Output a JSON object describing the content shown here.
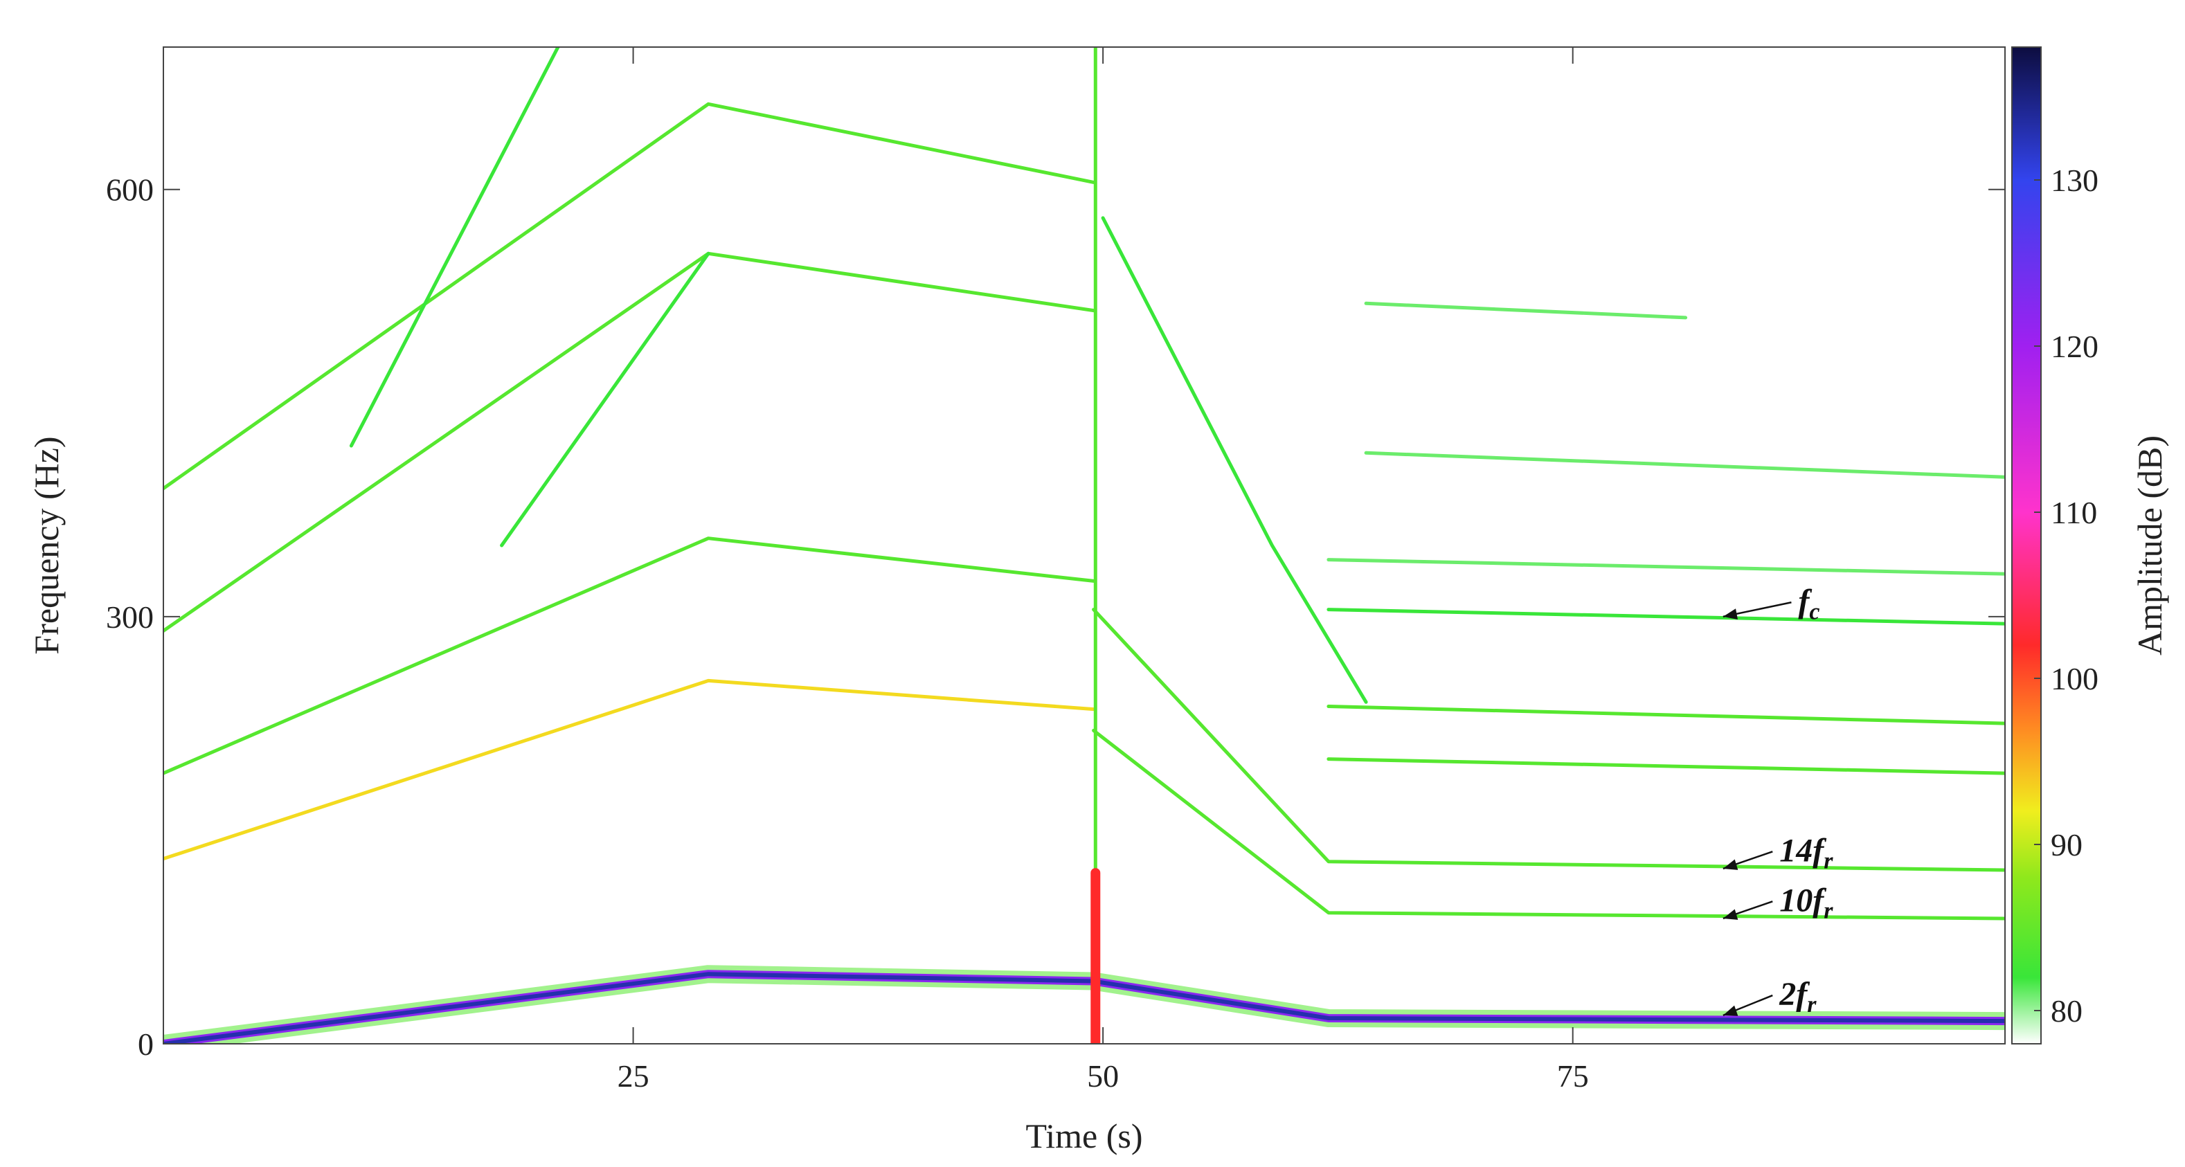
{
  "chart_data": {
    "type": "heatmap",
    "subtype": "spectrogram",
    "xlabel": "Time (s)",
    "ylabel": "Frequency (Hz)",
    "colorbar_label": "Amplitude (dB)",
    "xlim": [
      0,
      98
    ],
    "ylim": [
      0,
      700
    ],
    "xticks": [
      25,
      50,
      75
    ],
    "yticks": [
      0,
      300,
      600
    ],
    "colorbar_range": [
      78,
      138
    ],
    "colorbar_ticks": [
      80,
      90,
      100,
      110,
      120,
      130
    ],
    "colormap": [
      {
        "value": 78,
        "color": "#ffffff"
      },
      {
        "value": 82,
        "color": "#39e639"
      },
      {
        "value": 88,
        "color": "#8fe81c"
      },
      {
        "value": 92,
        "color": "#f0ee1e"
      },
      {
        "value": 97,
        "color": "#ff8a22"
      },
      {
        "value": 102,
        "color": "#ff2a2a"
      },
      {
        "value": 110,
        "color": "#ff33cc"
      },
      {
        "value": 120,
        "color": "#a020f0"
      },
      {
        "value": 130,
        "color": "#3344ee"
      },
      {
        "value": 138,
        "color": "#0d0d40"
      }
    ],
    "grid": false,
    "tracks": [
      {
        "id": "t1",
        "points": [
          [
            0,
            0
          ],
          [
            29,
            49
          ],
          [
            49.5,
            44
          ],
          [
            62,
            18
          ],
          [
            98,
            16
          ]
        ],
        "amplitude": 133
      },
      {
        "id": "t2",
        "points": [
          [
            0,
            130
          ],
          [
            29,
            255
          ],
          [
            49.5,
            235
          ]
        ],
        "amplitude": 93
      },
      {
        "id": "t3",
        "points": [
          [
            0,
            190
          ],
          [
            29,
            355
          ],
          [
            49.5,
            325
          ]
        ],
        "amplitude": 84
      },
      {
        "id": "t4",
        "points": [
          [
            0,
            290
          ],
          [
            29,
            555
          ],
          [
            49.5,
            515
          ]
        ],
        "amplitude": 84
      },
      {
        "id": "t5",
        "points": [
          [
            0,
            390
          ],
          [
            29,
            660
          ],
          [
            49.5,
            605
          ]
        ],
        "amplitude": 84
      },
      {
        "id": "t6",
        "points": [
          [
            10,
            420
          ],
          [
            21,
            700
          ]
        ],
        "amplitude": 82
      },
      {
        "id": "t7",
        "points": [
          [
            18,
            350
          ],
          [
            29,
            555
          ]
        ],
        "amplitude": 82
      },
      {
        "id": "t8",
        "points": [
          [
            49.5,
            220
          ],
          [
            62,
            92
          ],
          [
            98,
            88
          ]
        ],
        "amplitude": 84
      },
      {
        "id": "t9",
        "points": [
          [
            49.5,
            305
          ],
          [
            62,
            128
          ],
          [
            98,
            122
          ]
        ],
        "amplitude": 84
      },
      {
        "id": "t10",
        "points": [
          [
            50,
            580
          ],
          [
            59,
            350
          ],
          [
            64,
            240
          ]
        ],
        "amplitude": 82
      },
      {
        "id": "t11",
        "points": [
          [
            62,
            305
          ],
          [
            98,
            295
          ]
        ],
        "amplitude": 82
      },
      {
        "id": "t12",
        "points": [
          [
            62,
            237
          ],
          [
            98,
            225
          ]
        ],
        "amplitude": 84
      },
      {
        "id": "t13",
        "points": [
          [
            62,
            200
          ],
          [
            98,
            190
          ]
        ],
        "amplitude": 84
      },
      {
        "id": "t14",
        "points": [
          [
            62,
            340
          ],
          [
            98,
            330
          ]
        ],
        "amplitude": 81
      },
      {
        "id": "t15",
        "points": [
          [
            64,
            415
          ],
          [
            98,
            398
          ]
        ],
        "amplitude": 81
      },
      {
        "id": "t16",
        "points": [
          [
            64,
            520
          ],
          [
            81,
            510
          ]
        ],
        "amplitude": 81
      },
      {
        "id": "t17",
        "points": [
          [
            49.6,
            0
          ],
          [
            49.6,
            700
          ]
        ],
        "amplitude": 84
      },
      {
        "id": "t18",
        "points": [
          [
            49.6,
            0
          ],
          [
            49.6,
            120
          ]
        ],
        "amplitude": 102
      }
    ],
    "annotations": [
      {
        "text": "f",
        "sub": "c",
        "target": [
          83,
          300
        ],
        "anchor": [
          87,
          310
        ]
      },
      {
        "text": "14f",
        "sub": "r",
        "target": [
          83,
          123
        ],
        "anchor": [
          86,
          135
        ]
      },
      {
        "text": "10f",
        "sub": "r",
        "target": [
          83,
          88
        ],
        "anchor": [
          86,
          100
        ]
      },
      {
        "text": "2f",
        "sub": "r",
        "target": [
          83,
          20
        ],
        "anchor": [
          86,
          34
        ]
      }
    ]
  }
}
